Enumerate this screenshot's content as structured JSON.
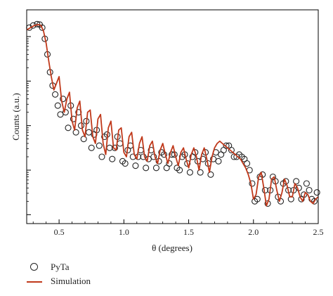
{
  "chart_data": {
    "type": "scatter",
    "title": "",
    "xlabel": "θ (degrees)",
    "ylabel": "Counts (a.u.)",
    "xlim": [
      0.25,
      2.5
    ],
    "yscale": "log",
    "y_ticks_labeled": false,
    "x_ticks": [
      0.5,
      1.0,
      1.5,
      2.0,
      2.5
    ],
    "x_tick_labels": [
      "0.5",
      "1.0",
      "1.5",
      "2.0",
      "2.5"
    ],
    "legend_position": "below-left",
    "colors": {
      "simulation": "#c0391b",
      "markers": "#222222",
      "frame": "#000000"
    },
    "series": [
      {
        "name": "PyTa",
        "style": "open-circle",
        "x": [
          0.27,
          0.3,
          0.33,
          0.35,
          0.37,
          0.39,
          0.41,
          0.43,
          0.45,
          0.47,
          0.49,
          0.51,
          0.53,
          0.55,
          0.57,
          0.59,
          0.61,
          0.63,
          0.65,
          0.67,
          0.69,
          0.71,
          0.73,
          0.75,
          0.77,
          0.79,
          0.81,
          0.83,
          0.85,
          0.87,
          0.89,
          0.91,
          0.93,
          0.95,
          0.97,
          0.99,
          1.01,
          1.03,
          1.05,
          1.07,
          1.09,
          1.11,
          1.13,
          1.15,
          1.17,
          1.19,
          1.21,
          1.23,
          1.25,
          1.27,
          1.29,
          1.31,
          1.33,
          1.35,
          1.37,
          1.39,
          1.41,
          1.43,
          1.45,
          1.47,
          1.49,
          1.51,
          1.53,
          1.55,
          1.57,
          1.59,
          1.61,
          1.63,
          1.65,
          1.67,
          1.69,
          1.71,
          1.73,
          1.75,
          1.77,
          1.79,
          1.81,
          1.83,
          1.85,
          1.87,
          1.89,
          1.91,
          1.93,
          1.95,
          1.97,
          1.99,
          2.01,
          2.03,
          2.05,
          2.07,
          2.09,
          2.11,
          2.13,
          2.15,
          2.17,
          2.19,
          2.21,
          2.23,
          2.25,
          2.27,
          2.29,
          2.31,
          2.33,
          2.35,
          2.37,
          2.39,
          2.41,
          2.43,
          2.45,
          2.47,
          2.49
        ],
        "y": [
          6.2,
          6.25,
          6.28,
          6.27,
          6.2,
          5.95,
          5.6,
          5.2,
          4.9,
          4.7,
          4.45,
          4.25,
          4.6,
          4.3,
          3.95,
          4.45,
          4.15,
          3.85,
          4.3,
          4.0,
          3.7,
          4.1,
          3.85,
          3.5,
          3.8,
          3.9,
          3.55,
          3.3,
          3.75,
          3.8,
          3.5,
          3.25,
          3.5,
          3.75,
          3.6,
          3.2,
          3.15,
          3.45,
          3.55,
          3.3,
          3.1,
          3.3,
          3.45,
          3.3,
          3.05,
          3.25,
          3.45,
          3.3,
          3.05,
          3.2,
          3.4,
          3.35,
          3.05,
          3.15,
          3.35,
          3.35,
          3.05,
          3.0,
          3.3,
          3.35,
          3.15,
          2.95,
          3.3,
          3.4,
          3.2,
          2.95,
          3.25,
          3.4,
          3.15,
          2.9,
          3.25,
          3.4,
          3.2,
          3.35,
          3.45,
          3.55,
          3.55,
          3.45,
          3.3,
          3.3,
          3.35,
          3.3,
          3.25,
          3.15,
          3.0,
          2.7,
          2.3,
          2.35,
          2.85,
          2.9,
          2.55,
          2.25,
          2.55,
          2.85,
          2.75,
          2.4,
          2.3,
          2.7,
          2.75,
          2.55,
          2.35,
          2.55,
          2.75,
          2.6,
          2.35,
          2.45,
          2.7,
          2.55,
          2.35,
          2.3,
          2.5
        ]
      },
      {
        "name": "Simulation",
        "style": "line",
        "x": [
          0.25,
          0.28,
          0.31,
          0.34,
          0.36,
          0.38,
          0.4,
          0.42,
          0.44,
          0.46,
          0.48,
          0.5,
          0.52,
          0.54,
          0.56,
          0.58,
          0.6,
          0.62,
          0.64,
          0.66,
          0.68,
          0.7,
          0.72,
          0.74,
          0.76,
          0.78,
          0.8,
          0.82,
          0.84,
          0.86,
          0.88,
          0.9,
          0.92,
          0.94,
          0.96,
          0.98,
          1.0,
          1.02,
          1.04,
          1.06,
          1.08,
          1.1,
          1.12,
          1.14,
          1.16,
          1.18,
          1.2,
          1.22,
          1.24,
          1.26,
          1.28,
          1.3,
          1.32,
          1.34,
          1.36,
          1.38,
          1.4,
          1.42,
          1.44,
          1.46,
          1.48,
          1.5,
          1.52,
          1.54,
          1.56,
          1.58,
          1.6,
          1.62,
          1.64,
          1.66,
          1.68,
          1.7,
          1.72,
          1.74,
          1.76,
          1.78,
          1.8,
          1.82,
          1.84,
          1.86,
          1.88,
          1.9,
          1.92,
          1.94,
          1.96,
          1.98,
          2.0,
          2.02,
          2.04,
          2.06,
          2.08,
          2.1,
          2.12,
          2.14,
          2.16,
          2.18,
          2.2,
          2.22,
          2.24,
          2.26,
          2.28,
          2.3,
          2.32,
          2.34,
          2.36,
          2.38,
          2.4,
          2.42,
          2.44,
          2.46,
          2.48,
          2.5
        ],
        "y": [
          6.15,
          6.2,
          6.25,
          6.27,
          6.25,
          6.12,
          5.85,
          5.45,
          5.1,
          4.8,
          4.95,
          5.1,
          4.55,
          4.3,
          4.6,
          4.75,
          4.1,
          3.9,
          4.4,
          4.55,
          3.9,
          3.75,
          4.3,
          4.35,
          3.75,
          3.6,
          4.15,
          4.25,
          3.6,
          3.35,
          3.95,
          4.1,
          3.5,
          3.45,
          3.9,
          3.95,
          3.4,
          3.3,
          3.75,
          3.85,
          3.35,
          3.25,
          3.6,
          3.75,
          3.3,
          3.2,
          3.55,
          3.65,
          3.3,
          3.15,
          3.45,
          3.6,
          3.35,
          3.15,
          3.4,
          3.55,
          3.3,
          3.1,
          3.4,
          3.5,
          3.25,
          3.05,
          3.35,
          3.5,
          3.3,
          3.0,
          3.35,
          3.5,
          3.25,
          2.95,
          3.3,
          3.5,
          3.6,
          3.65,
          3.6,
          3.55,
          3.5,
          3.45,
          3.4,
          3.35,
          3.3,
          3.25,
          3.15,
          3.05,
          2.9,
          2.7,
          2.35,
          2.45,
          2.85,
          2.95,
          2.6,
          2.2,
          2.35,
          2.8,
          2.85,
          2.55,
          2.3,
          2.5,
          2.8,
          2.65,
          2.4,
          2.4,
          2.7,
          2.6,
          2.4,
          2.3,
          2.5,
          2.45,
          2.3,
          2.25,
          2.35,
          2.4
        ]
      }
    ]
  },
  "legend": {
    "items": [
      {
        "label": "PyTa"
      },
      {
        "label": "Simulation"
      }
    ]
  }
}
